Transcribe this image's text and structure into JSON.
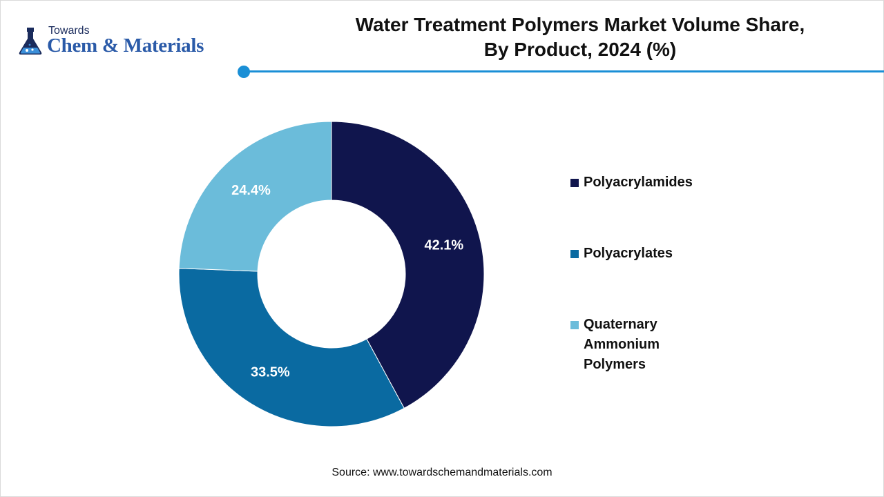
{
  "logo": {
    "top_text": "Towards",
    "main_text": "Chem & Materials",
    "icon": "flask-logo-icon"
  },
  "header": {
    "title_line1": "Water Treatment Polymers Market Volume Share,",
    "title_line2": "By Product, 2024 (%)",
    "rule_color": "#1a8fd6"
  },
  "chart_data": {
    "type": "pie",
    "donut": true,
    "title": "Water Treatment Polymers Market Volume Share, By Product, 2024 (%)",
    "categories": [
      "Polyacrylamides",
      "Polyacrylates",
      "Quaternary Ammonium Polymers"
    ],
    "values": [
      42.1,
      33.5,
      24.4
    ],
    "labels": [
      "42.1%",
      "33.5%",
      "24.4%"
    ],
    "colors": [
      "#10154d",
      "#0a6aa1",
      "#6bbcda"
    ],
    "legend_position": "right",
    "start": "top, clockwise"
  },
  "source": "Source: www.towardschemandmaterials.com"
}
